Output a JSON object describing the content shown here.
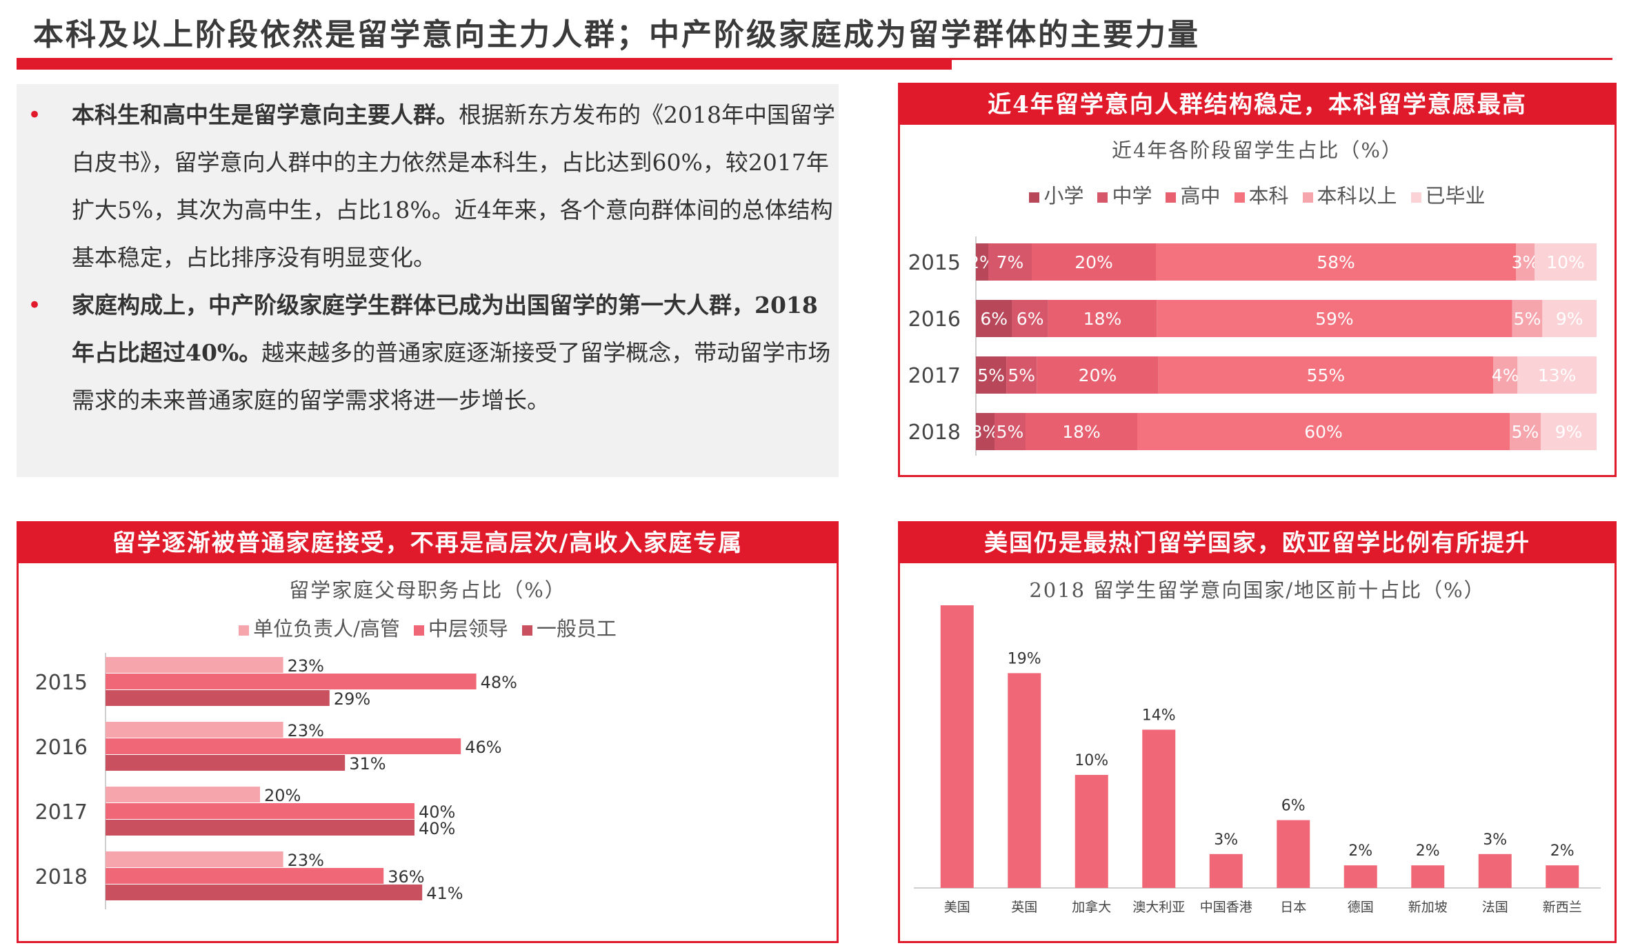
{
  "page": {
    "title": "本科及以上阶段依然是留学意向主力人群；中产阶级家庭成为留学群体的主要力量"
  },
  "text_box": {
    "bullets": [
      {
        "bold": "本科生和高中生是留学意向主要人群。",
        "text": "根据新东方发布的《2018年中国留学白皮书》，留学意向人群中的主力依然是本科生，占比达到60%，较2017年扩大5%，其次为高中生，占比18%。近4年来，各个意向群体间的总体结构基本稳定，占比排序没有明显变化。"
      },
      {
        "bold": "家庭构成上，中产阶级家庭学生群体已成为出国留学的第一大人群，2018年占比超过40%。",
        "text": "越来越多的普通家庭逐渐接受了留学概念，带动留学市场需求的未来普通家庭的留学需求将进一步增长。"
      }
    ]
  },
  "panels": {
    "top_right": {
      "header": "近4年留学意向人群结构稳定，本科留学意愿最高"
    },
    "bottom_left": {
      "header": "留学逐渐被普通家庭接受，不再是高层次/高收入家庭专属"
    },
    "bottom_right": {
      "header": "美国仍是最热门留学国家，欧亚留学比例有所提升"
    }
  },
  "colors": {
    "accent": "#e11a2b",
    "s1": "#b8475a",
    "s2": "#d6566a",
    "s3": "#e8606f",
    "s4": "#f3727d",
    "s5": "#f7a5ad",
    "s6": "#fbd2d6"
  },
  "chart_data": [
    {
      "type": "bar",
      "orientation": "horizontal",
      "stacked": true,
      "title": "近4年各阶段留学生占比（%）",
      "categories": [
        "2015",
        "2016",
        "2017",
        "2018"
      ],
      "series": [
        {
          "name": "小学",
          "values": [
            2,
            6,
            5,
            3
          ],
          "color": "#b8475a"
        },
        {
          "name": "中学",
          "values": [
            7,
            6,
            5,
            5
          ],
          "color": "#d6566a"
        },
        {
          "name": "高中",
          "values": [
            20,
            18,
            20,
            18
          ],
          "color": "#e8606f"
        },
        {
          "name": "本科",
          "values": [
            58,
            59,
            55,
            60
          ],
          "color": "#f3727d"
        },
        {
          "name": "本科以上",
          "values": [
            3,
            5,
            4,
            5
          ],
          "color": "#f7a5ad"
        },
        {
          "name": "已毕业",
          "values": [
            10,
            9,
            13,
            9
          ],
          "color": "#fbd2d6"
        }
      ],
      "value_suffix": "%"
    },
    {
      "type": "bar",
      "orientation": "horizontal",
      "stacked": false,
      "title": "留学家庭父母职务占比（%）",
      "categories": [
        "2015",
        "2016",
        "2017",
        "2018"
      ],
      "series": [
        {
          "name": "单位负责人/高管",
          "values": [
            23,
            23,
            20,
            23
          ],
          "color": "#f7a5ad"
        },
        {
          "name": "中层领导",
          "values": [
            48,
            46,
            40,
            36
          ],
          "color": "#f06877"
        },
        {
          "name": "一般员工",
          "values": [
            29,
            31,
            40,
            41
          ],
          "color": "#c9505f"
        }
      ],
      "value_suffix": "%"
    },
    {
      "type": "bar",
      "orientation": "vertical",
      "title": "2018 留学生留学意向国家/地区前十占比（%）",
      "categories": [
        "美国",
        "英国",
        "加拿大",
        "澳大利亚",
        "中国香港",
        "日本",
        "德国",
        "新加坡",
        "法国",
        "新西兰"
      ],
      "values": [
        25,
        19,
        10,
        14,
        3,
        6,
        2,
        2,
        3,
        2
      ],
      "color": "#f06877",
      "value_suffix": "%"
    }
  ]
}
